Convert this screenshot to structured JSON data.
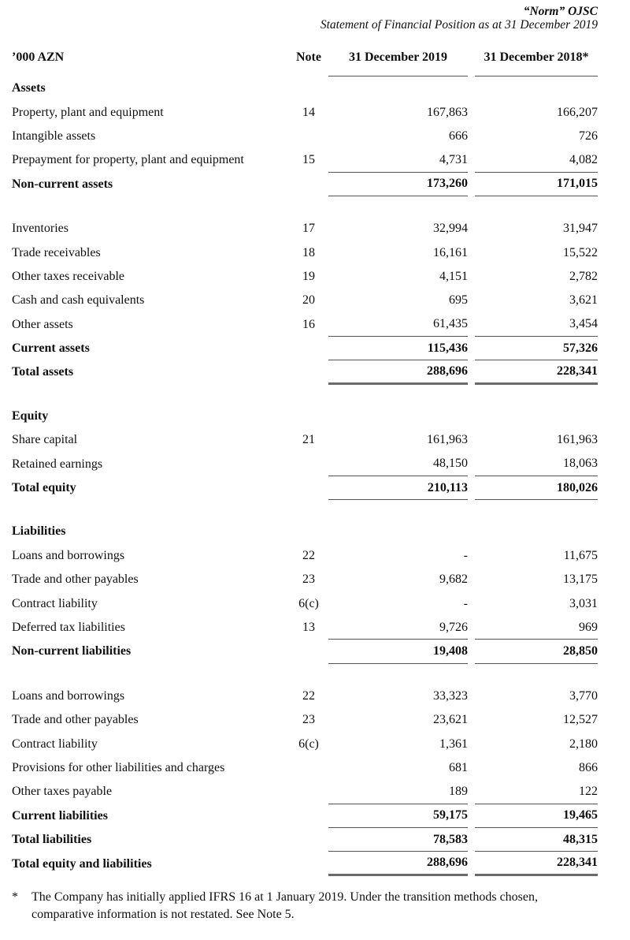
{
  "header": {
    "company": "“Norm” OJSC",
    "title": "Statement of Financial Position as at 31 December 2019"
  },
  "table": {
    "columns": [
      "’000 AZN",
      "Note",
      "31 December 2019",
      "31 December 2018*"
    ],
    "rows": [
      {
        "type": "section",
        "label": "Assets"
      },
      {
        "type": "item",
        "label": "Property, plant and equipment",
        "note": "14",
        "v2019": "167,863",
        "v2018": "166,207"
      },
      {
        "type": "item",
        "label": "Intangible assets",
        "note": "",
        "v2019": "666",
        "v2018": "726"
      },
      {
        "type": "item",
        "label": "Prepayment for property, plant and equipment",
        "note": "15",
        "v2019": "4,731",
        "v2018": "4,082",
        "line": "below"
      },
      {
        "type": "subtotal",
        "label": "Non-current assets",
        "note": "",
        "v2019": "173,260",
        "v2018": "171,015",
        "line": "below"
      },
      {
        "type": "spacer",
        "h": "26"
      },
      {
        "type": "item",
        "label": "Inventories",
        "note": "17",
        "v2019": "32,994",
        "v2018": "31,947"
      },
      {
        "type": "item",
        "label": "Trade receivables",
        "note": "18",
        "v2019": "16,161",
        "v2018": "15,522"
      },
      {
        "type": "item",
        "label": "Other taxes receivable",
        "note": "19",
        "v2019": "4,151",
        "v2018": "2,782"
      },
      {
        "type": "item",
        "label": "Cash and cash equivalents",
        "note": "20",
        "v2019": "695",
        "v2018": "3,621"
      },
      {
        "type": "item",
        "label": "Other assets",
        "note": "16",
        "v2019": "61,435",
        "v2018": "3,454",
        "line": "below"
      },
      {
        "type": "subtotal",
        "label": "Current assets",
        "note": "",
        "v2019": "115,436",
        "v2018": "57,326",
        "line": "below"
      },
      {
        "type": "subtotal",
        "label": "Total assets",
        "note": "",
        "v2019": "288,696",
        "v2018": "228,341",
        "line": "thick"
      },
      {
        "type": "spacer",
        "h": "25"
      },
      {
        "type": "section",
        "label": "Equity"
      },
      {
        "type": "item",
        "label": "Share capital",
        "note": "21",
        "v2019": "161,963",
        "v2018": "161,963"
      },
      {
        "type": "item",
        "label": "Retained earnings",
        "note": "",
        "v2019": "48,150",
        "v2018": "18,063",
        "line": "below"
      },
      {
        "type": "subtotal",
        "label": "Total equity",
        "note": "",
        "v2019": "210,113",
        "v2018": "180,026",
        "line": "below"
      },
      {
        "type": "spacer",
        "h": "25"
      },
      {
        "type": "section",
        "label": "Liabilities"
      },
      {
        "type": "item",
        "label": "Loans and borrowings",
        "note": "22",
        "v2019": "-",
        "v2018": "11,675"
      },
      {
        "type": "item",
        "label": "Trade and other payables",
        "note": "23",
        "v2019": "9,682",
        "v2018": "13,175"
      },
      {
        "type": "item",
        "label": "Contract liability",
        "note": "6(c)",
        "v2019": "-",
        "v2018": "3,031"
      },
      {
        "type": "item",
        "label": "Deferred tax liabilities",
        "note": "13",
        "v2019": "9,726",
        "v2018": "969",
        "line": "below"
      },
      {
        "type": "subtotal",
        "label": "Non-current liabilities",
        "note": "",
        "v2019": "19,408",
        "v2018": "28,850",
        "line": "below"
      },
      {
        "type": "spacer",
        "h": "26"
      },
      {
        "type": "item",
        "label": "Loans and borrowings",
        "note": "22",
        "v2019": "33,323",
        "v2018": "3,770"
      },
      {
        "type": "item",
        "label": "Trade and other payables",
        "note": "23",
        "v2019": "23,621",
        "v2018": "12,527"
      },
      {
        "type": "item",
        "label": "Contract liability",
        "note": "6(c)",
        "v2019": "1,361",
        "v2018": "2,180"
      },
      {
        "type": "item",
        "label": "Provisions for other liabilities and charges",
        "note": "",
        "v2019": "681",
        "v2018": "866"
      },
      {
        "type": "item",
        "label": "Other taxes payable",
        "note": "",
        "v2019": "189",
        "v2018": "122",
        "line": "below"
      },
      {
        "type": "subtotal",
        "label": "Current liabilities",
        "note": "",
        "v2019": "59,175",
        "v2018": "19,465",
        "line": "below"
      },
      {
        "type": "subtotal",
        "label": "Total liabilities",
        "note": "",
        "v2019": "78,583",
        "v2018": "48,315",
        "line": "below"
      },
      {
        "type": "subtotal",
        "label": "Total equity and liabilities",
        "note": "",
        "v2019": "288,696",
        "v2018": "228,341",
        "line": "thick"
      }
    ]
  },
  "footnote": {
    "marker": "*",
    "text": "The Company has initially applied IFRS 16 at 1 January 2019. Under the transition methods chosen, comparative information is not restated. See Note 5."
  }
}
